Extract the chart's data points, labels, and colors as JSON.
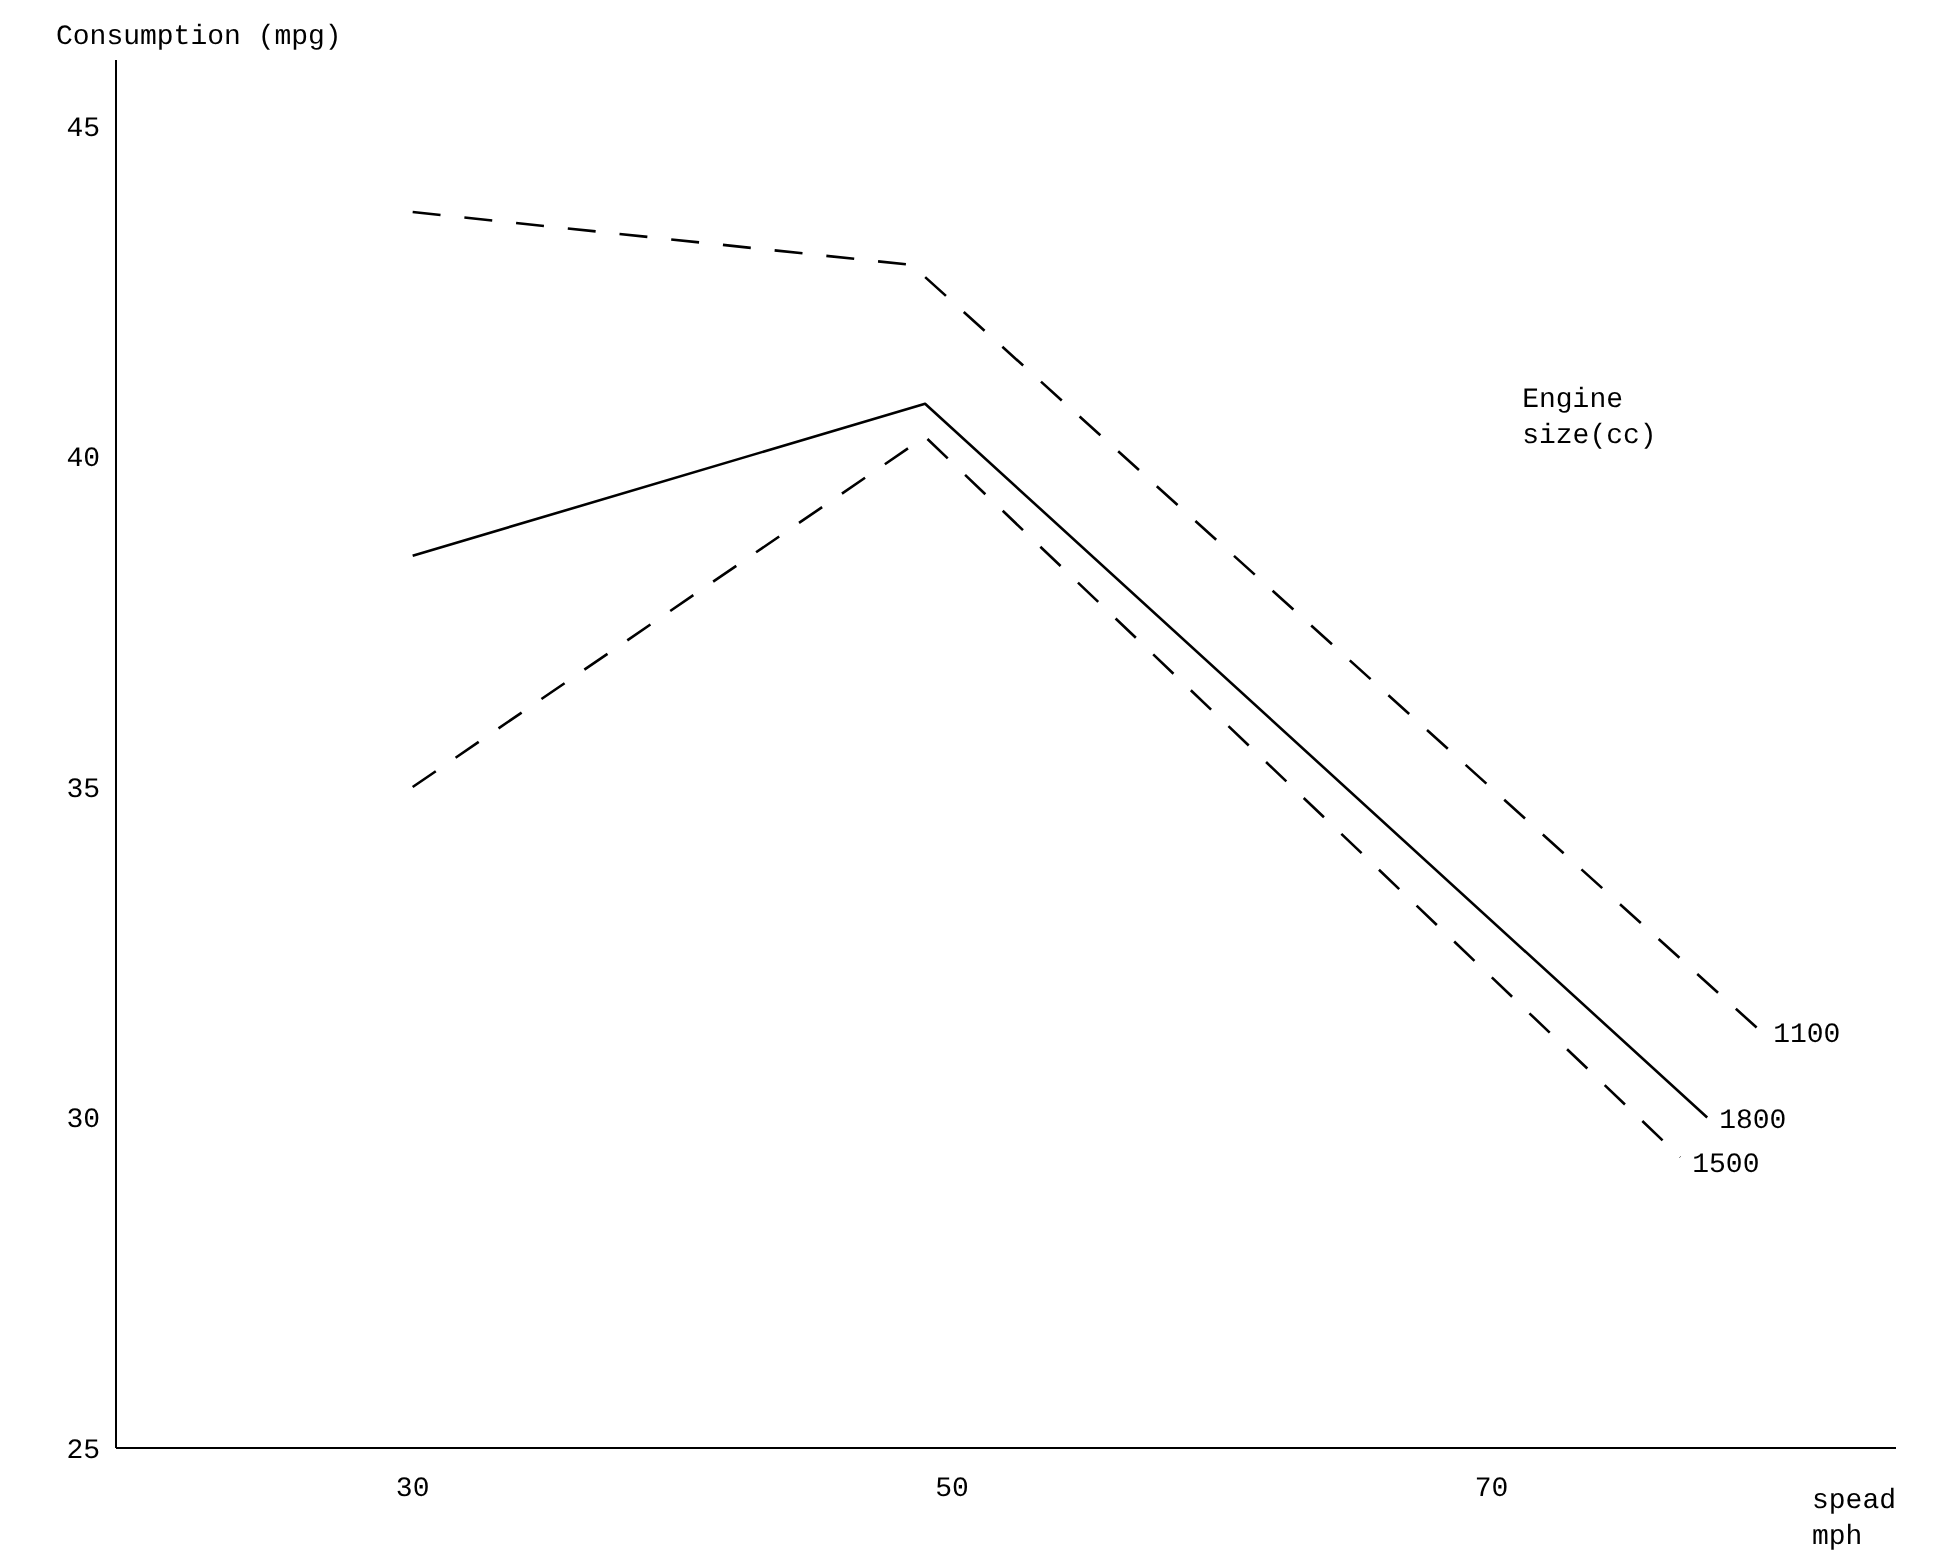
{
  "chart_data": {
    "type": "line",
    "ylabel": "Consumption (mpg)",
    "xlabel": "spead mph",
    "legend_title": "Engine size(cc)",
    "xlim": [
      19,
      85
    ],
    "xticks": [
      30,
      50,
      70
    ],
    "ylim": [
      25,
      46
    ],
    "yticks": [
      25,
      30,
      35,
      40,
      45
    ],
    "grid": false,
    "series": [
      {
        "name": "1100",
        "color": "#000000",
        "line_style": "dashed",
        "x": [
          30,
          48.5,
          80
        ],
        "values": [
          43.7,
          42.9,
          31.3
        ]
      },
      {
        "name": "1800",
        "color": "#000000",
        "line_style": "solid",
        "x": [
          30,
          49,
          78
        ],
        "values": [
          38.5,
          40.8,
          30
        ]
      },
      {
        "name": "1500",
        "color": "#000000",
        "line_style": "dashed",
        "x": [
          30,
          49,
          77
        ],
        "values": [
          35,
          40.3,
          29.4
        ]
      }
    ]
  }
}
